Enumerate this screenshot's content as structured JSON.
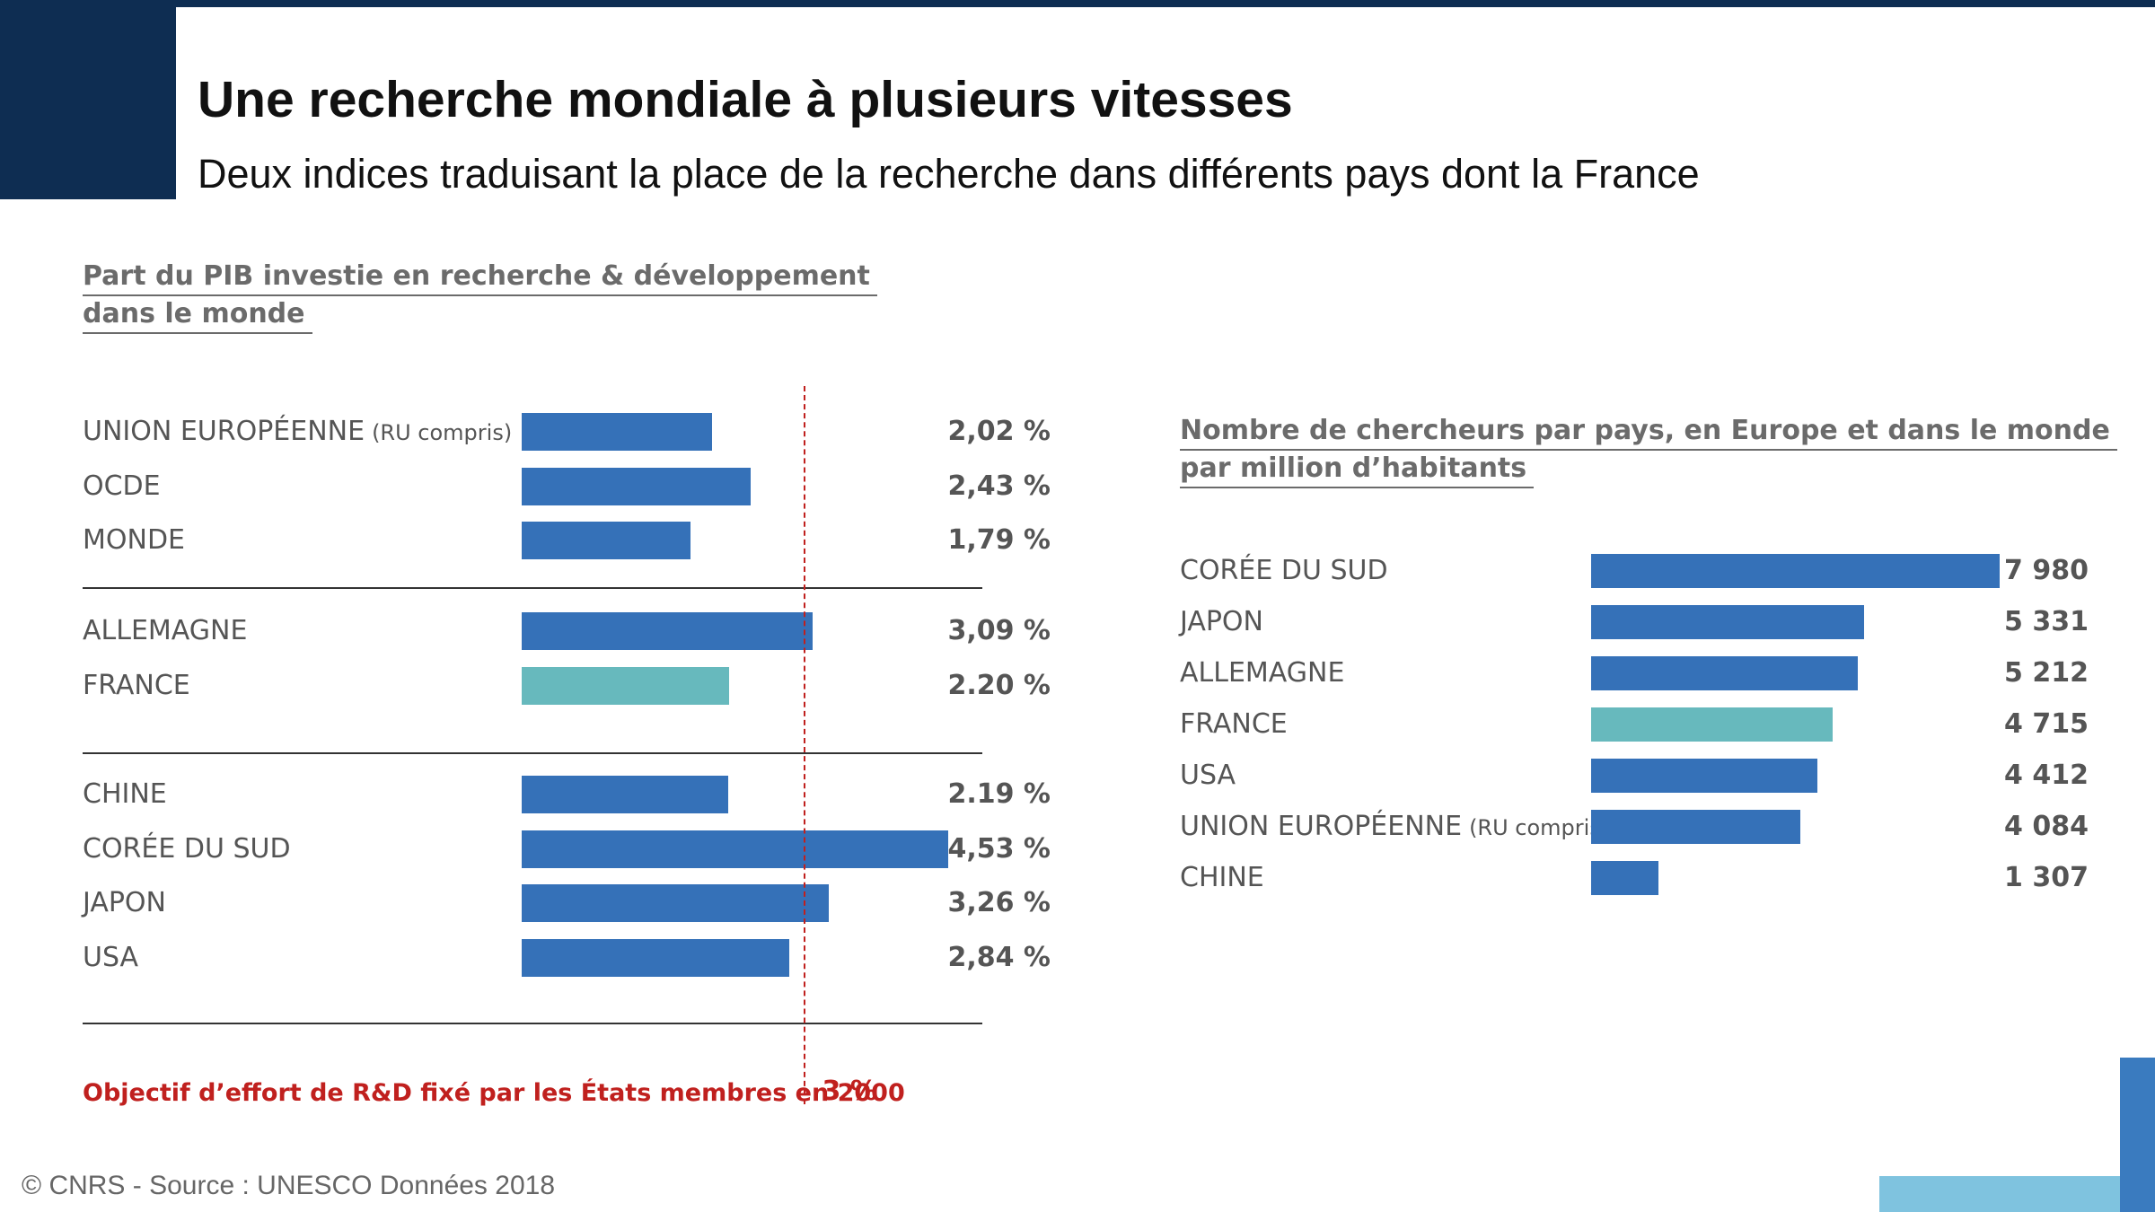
{
  "header": {
    "title": "Une recherche mondiale à plusieurs vitesses",
    "subtitle": "Deux indices traduisant la place de la recherche dans différents pays dont la France"
  },
  "footer": {
    "source": "© CNRS - Source : UNESCO Données 2018"
  },
  "colors": {
    "bar": "#3571b8",
    "france_bar": "#67b9bd",
    "target": "#c0201e",
    "header_block": "#0e2d52"
  },
  "chart_data": [
    {
      "type": "bar",
      "orientation": "horizontal",
      "title": "Part du PIB investie en recherche & développement dans le monde",
      "title_lines": [
        "Part du PIB investie en recherche & développement",
        "dans le monde"
      ],
      "groups": [
        [
          {
            "label": "UNION EUROPÉENNE",
            "suffix": "(RU compris)",
            "value": 2.02,
            "display": "2,02 %"
          },
          {
            "label": "OCDE",
            "value": 2.43,
            "display": "2,43 %"
          },
          {
            "label": "MONDE",
            "value": 1.79,
            "display": "1,79 %"
          }
        ],
        [
          {
            "label": "ALLEMAGNE",
            "value": 3.09,
            "display": "3,09 %"
          },
          {
            "label": "FRANCE",
            "value": 2.2,
            "display": "2.20 %",
            "highlight": true
          }
        ],
        [
          {
            "label": "CHINE",
            "value": 2.19,
            "display": "2.19 %"
          },
          {
            "label": "CORÉE DU SUD",
            "value": 4.53,
            "display": "4,53 %"
          },
          {
            "label": "JAPON",
            "value": 3.26,
            "display": "3,26 %"
          },
          {
            "label": "USA",
            "value": 2.84,
            "display": "2,84 %"
          }
        ]
      ],
      "xlim": [
        0,
        4.55
      ],
      "target": {
        "value": 3,
        "label": "Objectif d’effort de R&D fixé par les États membres en 2000",
        "display": "3 %"
      }
    },
    {
      "type": "bar",
      "orientation": "horizontal",
      "title": "Nombre de chercheurs par pays, en Europe et dans le monde par million d’habitants",
      "title_lines": [
        "Nombre de chercheurs par pays, en Europe et dans le monde",
        "par million d’habitants"
      ],
      "rows": [
        {
          "label": "CORÉE DU SUD",
          "value": 7980,
          "display": "7 980"
        },
        {
          "label": "JAPON",
          "value": 5331,
          "display": "5 331"
        },
        {
          "label": "ALLEMAGNE",
          "value": 5212,
          "display": "5 212"
        },
        {
          "label": "FRANCE",
          "value": 4715,
          "display": "4 715",
          "highlight": true
        },
        {
          "label": "USA",
          "value": 4412,
          "display": "4 412"
        },
        {
          "label": "UNION EUROPÉENNE",
          "suffix": "(RU compris)",
          "value": 4084,
          "display": "4 084"
        },
        {
          "label": "CHINE",
          "value": 1307,
          "display": "1 307"
        }
      ],
      "xlim": [
        0,
        7980
      ]
    }
  ]
}
